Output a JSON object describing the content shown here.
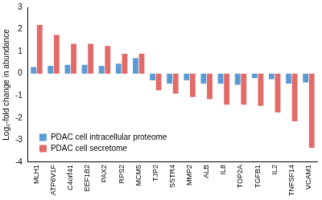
{
  "chart_data": {
    "type": "bar",
    "y_label": "Log₂-fold change in abundance",
    "categories": [
      "MLH1",
      "ATP6V1F",
      "C4orf41",
      "EEF1B2",
      "PAX2",
      "RPS2",
      "MCM5",
      "TJP2",
      "SSTR4",
      "MMP2",
      "ALB",
      "IL8",
      "TOP2A",
      "TGFB1",
      "IL2",
      "TNFSF14",
      "VCAM1"
    ],
    "series": [
      {
        "name": "PDAC cell intracellular proteome",
        "color": "#5b9bd5",
        "values": [
          0.3,
          0.35,
          0.4,
          0.4,
          0.35,
          0.45,
          0.7,
          -0.3,
          -0.45,
          -0.3,
          -0.45,
          -0.45,
          -0.5,
          -0.2,
          -0.25,
          -0.45,
          -0.4
        ]
      },
      {
        "name": "PDAC cell secretome",
        "color": "#e26b69",
        "values": [
          2.2,
          1.75,
          1.35,
          1.35,
          1.25,
          0.9,
          0.9,
          -0.75,
          -0.9,
          -1.05,
          -1.15,
          -1.4,
          -1.4,
          -1.45,
          -1.75,
          -2.15,
          -3.35
        ]
      }
    ],
    "ylim": [
      -4,
      3
    ],
    "yticks": [
      -4,
      -3,
      -2,
      -1,
      0,
      1,
      2,
      3
    ],
    "grid": false,
    "legend": "lower left"
  }
}
